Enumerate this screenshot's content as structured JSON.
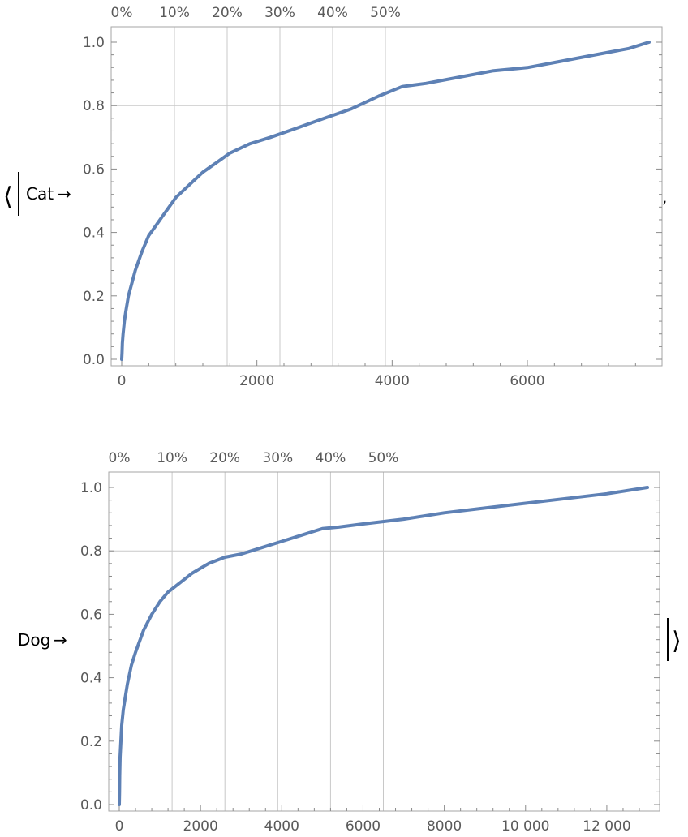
{
  "association": {
    "open_bracket": "⟨",
    "separator": ",",
    "close_bracket": "⟩",
    "bar": "|"
  },
  "chart_data": [
    {
      "type": "line",
      "key_label": "Cat",
      "arrow": "→",
      "x_max": 7800,
      "ylim": [
        0,
        1
      ],
      "x_ticks": [
        0,
        2000,
        4000,
        6000
      ],
      "x_tick_labels": [
        "0",
        "2000",
        "4000",
        "6000"
      ],
      "y_ticks": [
        0,
        0.2,
        0.4,
        0.6,
        0.8,
        1.0
      ],
      "y_tick_labels": [
        "0.0",
        "0.2",
        "0.4",
        "0.6",
        "0.8",
        "1.0"
      ],
      "percent_ticks": [
        {
          "label": "0%",
          "x": 0
        },
        {
          "label": "10%",
          "x": 780
        },
        {
          "label": "20%",
          "x": 1560
        },
        {
          "label": "30%",
          "x": 2340
        },
        {
          "label": "40%",
          "x": 3120
        },
        {
          "label": "50%",
          "x": 3900
        }
      ],
      "gridlines_x": [
        780,
        1560,
        2340,
        3120,
        3900
      ],
      "gridlines_y": [
        0.8
      ],
      "color": "#5e81b5",
      "series": [
        {
          "x": [
            0,
            5,
            10,
            20,
            40,
            60,
            100,
            150,
            200,
            300,
            400,
            500,
            600,
            800,
            1000,
            1200,
            1400,
            1600,
            1900,
            2200,
            2600,
            3000,
            3400,
            3800,
            4150,
            4500,
            5000,
            5500,
            6000,
            6500,
            7000,
            7500,
            7800
          ],
          "y": [
            0.0,
            0.02,
            0.05,
            0.08,
            0.12,
            0.15,
            0.2,
            0.24,
            0.28,
            0.34,
            0.39,
            0.42,
            0.45,
            0.51,
            0.55,
            0.59,
            0.62,
            0.65,
            0.68,
            0.7,
            0.73,
            0.76,
            0.79,
            0.83,
            0.86,
            0.87,
            0.89,
            0.91,
            0.92,
            0.94,
            0.96,
            0.98,
            1.0
          ]
        }
      ]
    },
    {
      "type": "line",
      "key_label": "Dog",
      "arrow": "→",
      "x_max": 13000,
      "ylim": [
        0,
        1
      ],
      "x_ticks": [
        0,
        2000,
        4000,
        6000,
        8000,
        10000,
        12000
      ],
      "x_tick_labels": [
        "0",
        "2000",
        "4000",
        "6000",
        "8000",
        "10 000",
        "12 000"
      ],
      "y_ticks": [
        0,
        0.2,
        0.4,
        0.6,
        0.8,
        1.0
      ],
      "y_tick_labels": [
        "0.0",
        "0.2",
        "0.4",
        "0.6",
        "0.8",
        "1.0"
      ],
      "percent_ticks": [
        {
          "label": "0%",
          "x": 0
        },
        {
          "label": "10%",
          "x": 1300
        },
        {
          "label": "20%",
          "x": 2600
        },
        {
          "label": "30%",
          "x": 3900
        },
        {
          "label": "40%",
          "x": 5200
        },
        {
          "label": "50%",
          "x": 6500
        }
      ],
      "gridlines_x": [
        1300,
        2600,
        3900,
        5200,
        6500
      ],
      "gridlines_y": [
        0.8
      ],
      "color": "#5e81b5",
      "series": [
        {
          "x": [
            0,
            5,
            10,
            20,
            40,
            60,
            100,
            150,
            200,
            300,
            400,
            600,
            800,
            1000,
            1200,
            1500,
            1800,
            2200,
            2600,
            3000,
            3500,
            4000,
            4500,
            5000,
            5400,
            6000,
            7000,
            8000,
            9000,
            10000,
            11000,
            12000,
            13000
          ],
          "y": [
            0.0,
            0.04,
            0.09,
            0.15,
            0.2,
            0.25,
            0.3,
            0.34,
            0.38,
            0.44,
            0.48,
            0.55,
            0.6,
            0.64,
            0.67,
            0.7,
            0.73,
            0.76,
            0.78,
            0.79,
            0.81,
            0.83,
            0.85,
            0.87,
            0.875,
            0.885,
            0.9,
            0.92,
            0.935,
            0.95,
            0.965,
            0.98,
            1.0
          ]
        }
      ]
    }
  ]
}
